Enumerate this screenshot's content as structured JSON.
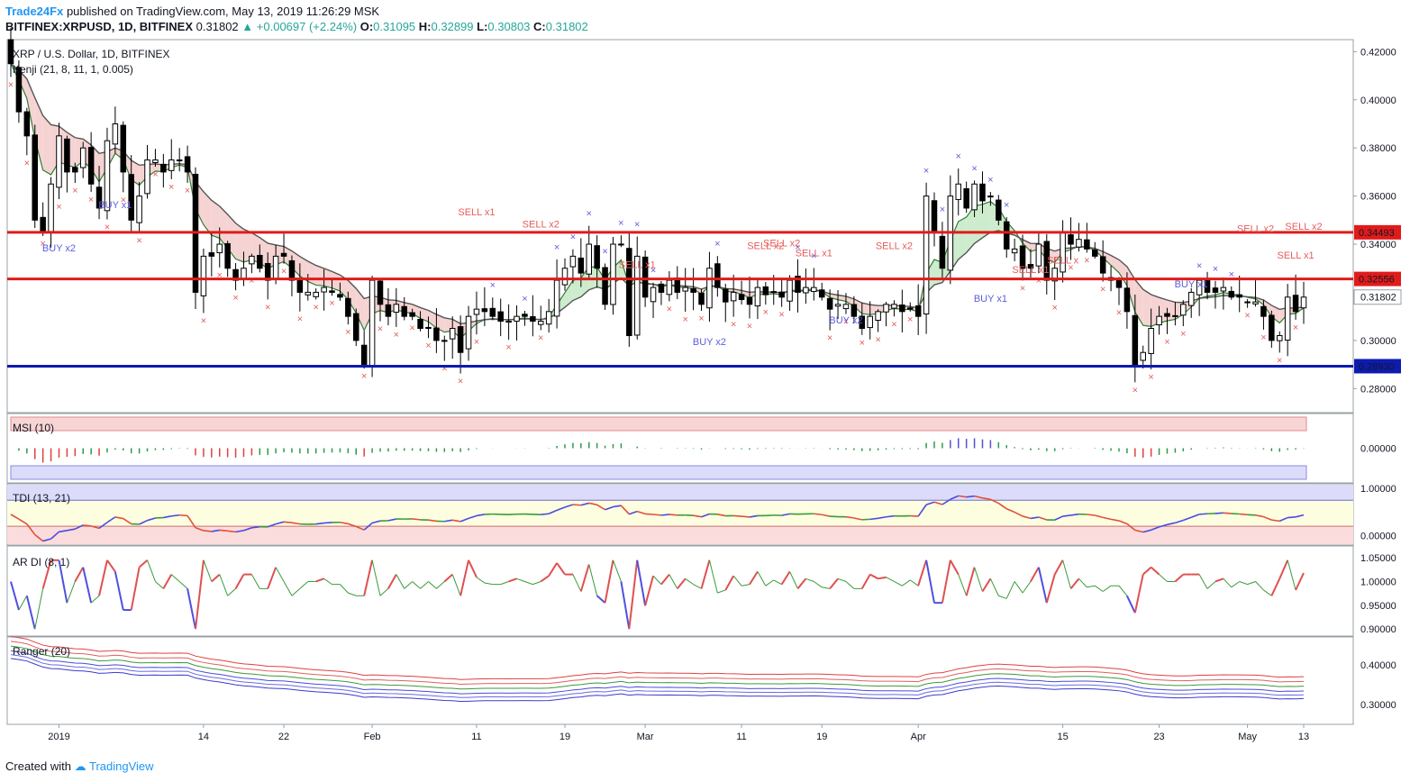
{
  "header": {
    "author": "Trade24Fx",
    "published_text": "published on TradingView.com, May 13, 2019 11:26:29 MSK",
    "symbol_line": "BITFINEX:XRPUSD, 1D, BITFINEX",
    "last": "0.31802",
    "change": "+0.00697 (+2.24%)",
    "open": "0.31095",
    "high": "0.32899",
    "low": "0.30803",
    "close": "0.31802"
  },
  "footer": {
    "created_with": "Created with",
    "brand": "TradingView"
  },
  "colors": {
    "bull_candle": "#ffffff",
    "bear_candle": "#000000",
    "resistance": "#e01b1b",
    "support": "#0d1bb0",
    "buy_signal": "#5d5de0",
    "sell_signal": "#e65c5c",
    "cloud_bull": "#cdeccd",
    "cloud_bear": "#f6d3d3"
  },
  "chart_data": [
    {
      "type": "line",
      "name": "main",
      "title": "XRP / U.S. Dollar, 1D, BITFINEX",
      "indicator_label": "Kenji (21, 8, 11, 1, 0.005)",
      "ylim": [
        0.27,
        0.425
      ],
      "y_ticks": [
        "0.42000",
        "0.40000",
        "0.38000",
        "0.36000",
        "0.34000",
        "0.31802",
        "0.30000",
        "0.28000"
      ],
      "x_ticks": [
        "2019",
        "14",
        "22",
        "Feb",
        "11",
        "19",
        "Mar",
        "11",
        "19",
        "Apr",
        "15",
        "23",
        "May",
        "13"
      ],
      "hlines": [
        {
          "value": 0.34493,
          "label": "0.34493",
          "color": "#e01b1b"
        },
        {
          "value": 0.32556,
          "label": "0.32556",
          "color": "#e01b1b"
        },
        {
          "value": 0.2893,
          "label": "0.28930",
          "color": "#0d1bb0"
        }
      ],
      "ohlc_note": "approximate daily candles Dec 2018 - May 13 2019",
      "close": [
        0.415,
        0.395,
        0.385,
        0.35,
        0.345,
        0.365,
        0.385,
        0.37,
        0.37,
        0.38,
        0.365,
        0.355,
        0.383,
        0.39,
        0.37,
        0.35,
        0.36,
        0.375,
        0.375,
        0.37,
        0.375,
        0.375,
        0.37,
        0.32,
        0.335,
        0.335,
        0.34,
        0.33,
        0.325,
        0.33,
        0.335,
        0.33,
        0.325,
        0.335,
        0.335,
        0.325,
        0.32,
        0.32,
        0.32,
        0.322,
        0.32,
        0.318,
        0.31,
        0.3,
        0.29,
        0.325,
        0.315,
        0.31,
        0.315,
        0.31,
        0.31,
        0.305,
        0.305,
        0.3,
        0.3,
        0.305,
        0.295,
        0.31,
        0.313,
        0.312,
        0.31,
        0.308,
        0.308,
        0.31,
        0.31,
        0.308,
        0.308,
        0.312,
        0.325,
        0.33,
        0.335,
        0.328,
        0.34,
        0.33,
        0.315,
        0.34,
        0.34,
        0.302,
        0.335,
        0.318,
        0.322,
        0.32,
        0.325,
        0.32,
        0.322,
        0.32,
        0.315,
        0.33,
        0.322,
        0.316,
        0.32,
        0.317,
        0.315,
        0.322,
        0.319,
        0.32,
        0.318,
        0.325,
        0.32,
        0.322,
        0.322,
        0.318,
        0.313,
        0.315,
        0.315,
        0.31,
        0.305,
        0.31,
        0.312,
        0.315,
        0.315,
        0.312,
        0.313,
        0.31,
        0.36,
        0.345,
        0.33,
        0.36,
        0.365,
        0.355,
        0.365,
        0.358,
        0.36,
        0.35,
        0.338,
        0.338,
        0.33,
        0.33,
        0.34,
        0.325,
        0.33,
        0.345,
        0.34,
        0.342,
        0.338,
        0.335,
        0.328,
        0.325,
        0.322,
        0.312,
        0.29,
        0.295,
        0.305,
        0.31,
        0.31,
        0.31,
        0.315,
        0.32,
        0.325,
        0.32,
        0.32,
        0.322,
        0.318,
        0.318,
        0.316,
        0.316,
        0.31,
        0.3,
        0.302,
        0.318,
        0.312,
        0.318
      ],
      "series": [
        {
          "name": "MSI (10)",
          "ylim": [
            -0.06,
            0.06
          ],
          "ticks": [
            "0.00000"
          ]
        },
        {
          "name": "TDI (13, 21)",
          "ylim": [
            -0.2,
            1.1
          ],
          "ticks": [
            "1.00000",
            "0.00000"
          ]
        },
        {
          "name": "AR DI (8, 1)",
          "ylim": [
            0.885,
            1.075
          ],
          "ticks": [
            "1.05000",
            "1.00000",
            "0.95000",
            "0.90000"
          ]
        },
        {
          "name": "Ranger (20)",
          "ylim": [
            0.25,
            0.47
          ],
          "ticks": [
            "0.40000",
            "0.30000"
          ]
        }
      ],
      "signals": [
        {
          "label": "BUY x2",
          "type": "buy"
        },
        {
          "label": "BUY x1",
          "type": "buy"
        },
        {
          "label": "SELL x1",
          "type": "sell"
        },
        {
          "label": "SELL x2",
          "type": "sell"
        },
        {
          "label": "SELL x1",
          "type": "sell"
        },
        {
          "label": "BUY x2",
          "type": "buy"
        },
        {
          "label": "BUY x2",
          "type": "buy"
        },
        {
          "label": "SELL x2",
          "type": "sell"
        },
        {
          "label": "SELL x2",
          "type": "sell"
        },
        {
          "label": "SELL x1",
          "type": "sell"
        },
        {
          "label": "SELL x2",
          "type": "sell"
        },
        {
          "label": "BUY x1",
          "type": "buy"
        },
        {
          "label": "SELL x1",
          "type": "sell"
        },
        {
          "label": "SELL x",
          "type": "sell"
        },
        {
          "label": "BUY x1",
          "type": "buy"
        },
        {
          "label": "SELL x2",
          "type": "sell"
        },
        {
          "label": "SELL x1",
          "type": "sell"
        },
        {
          "label": "SELL x2",
          "type": "sell"
        }
      ]
    }
  ]
}
